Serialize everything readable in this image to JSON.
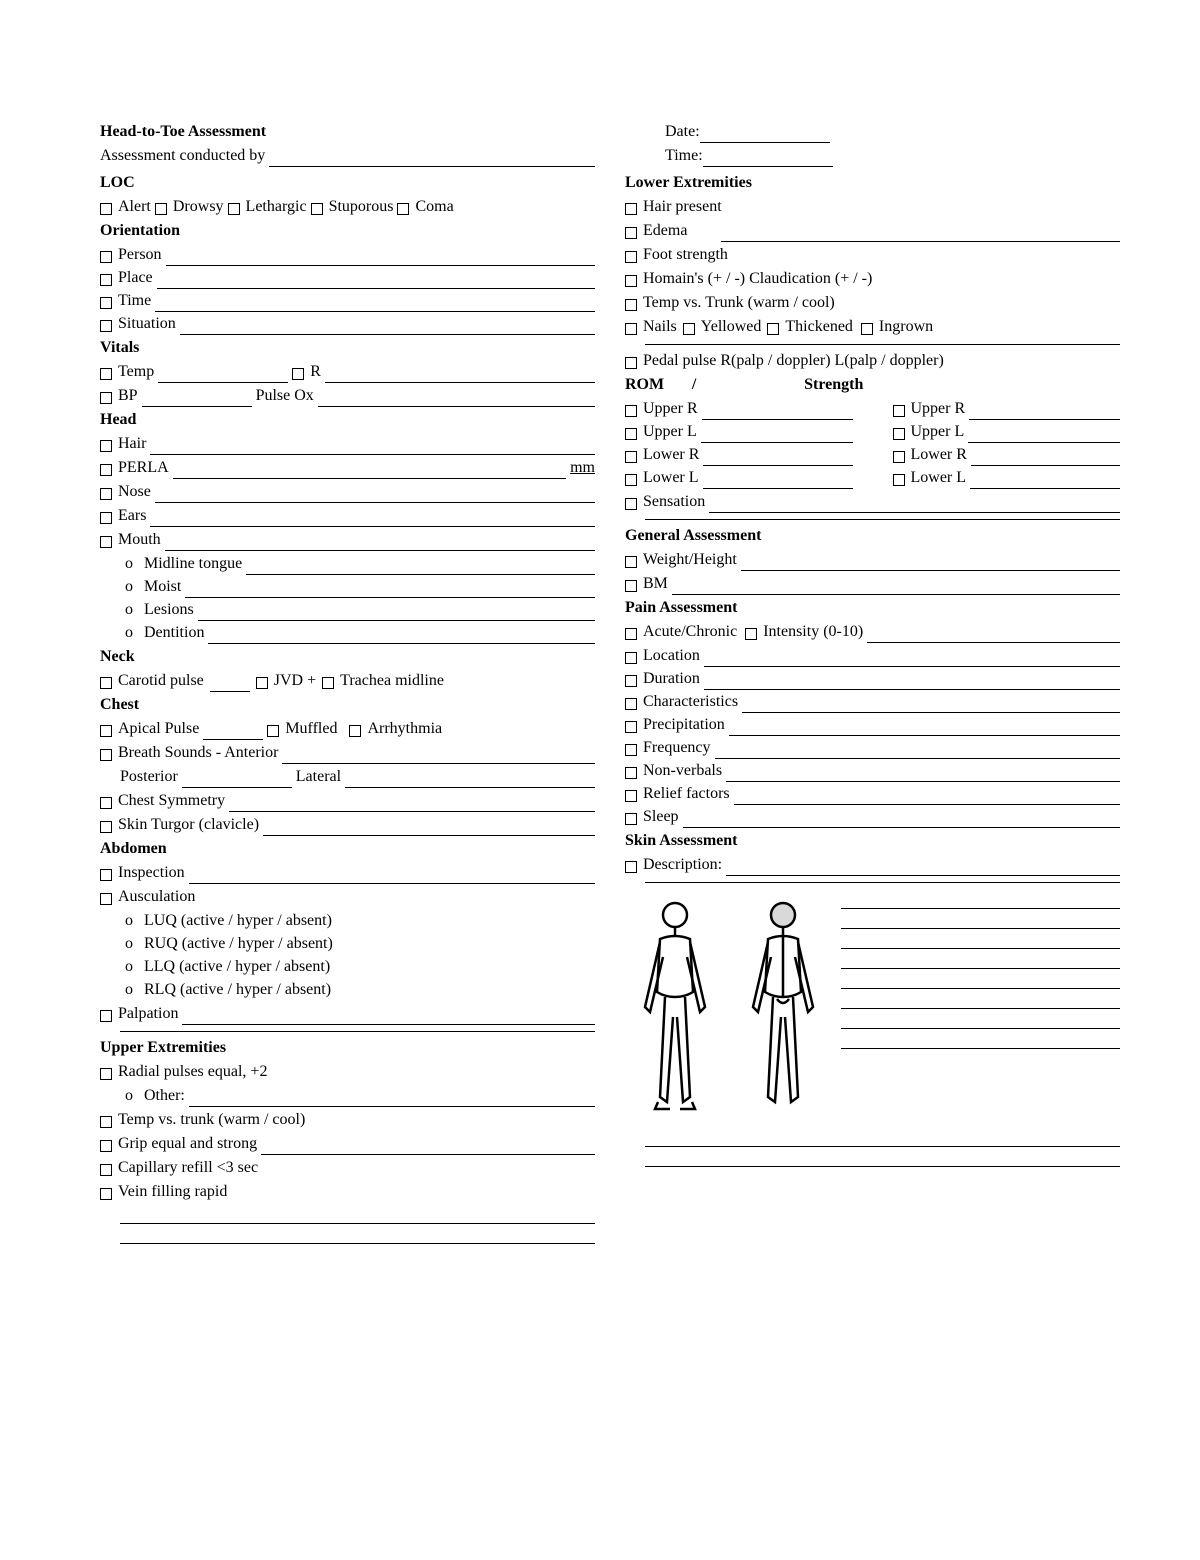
{
  "title": "Head-to-Toe Assessment",
  "conducted_by_label": "Assessment conducted by",
  "date_label": "Date:",
  "time_label": "Time:",
  "left": {
    "loc": {
      "heading": "LOC",
      "options": [
        "Alert",
        "Drowsy",
        "Lethargic",
        "Stuporous",
        "Coma"
      ]
    },
    "orientation": {
      "heading": "Orientation",
      "items": [
        "Person",
        "Place",
        "Time",
        "Situation"
      ]
    },
    "vitals": {
      "heading": "Vitals",
      "temp": "Temp",
      "r": "R",
      "bp": "BP",
      "pulseox": "Pulse Ox"
    },
    "head": {
      "heading": "Head",
      "items": [
        "Hair",
        "PERLA",
        "Nose",
        "Ears",
        "Mouth"
      ],
      "mm": "mm",
      "mouth_sub": [
        "Midline tongue",
        "Moist",
        "Lesions",
        "Dentition"
      ]
    },
    "neck": {
      "heading": "Neck",
      "carotid": "Carotid pulse",
      "jvd": "JVD +",
      "trachea": "Trachea midline"
    },
    "chest": {
      "heading": "Chest",
      "apical": "Apical Pulse",
      "muffled": "Muffled",
      "arr": "Arrhythmia",
      "breath": "Breath Sounds - Anterior",
      "posterior": "Posterior",
      "lateral": "Lateral",
      "symmetry": "Chest Symmetry",
      "turgor": "Skin Turgor (clavicle)"
    },
    "abdomen": {
      "heading": "Abdomen",
      "inspection": "Inspection",
      "ausc": "Ausculation",
      "quads": [
        "LUQ (active  /  hyper  /  absent)",
        "RUQ (active  /  hyper  /  absent)",
        "LLQ (active  /  hyper  /  absent)",
        "RLQ (active  /  hyper  /  absent)"
      ],
      "palpation": "Palpation"
    },
    "upper": {
      "heading": "Upper Extremities",
      "radial": "Radial pulses equal, +2",
      "other": "Other:",
      "temp": "Temp vs. trunk  (warm  /  cool)",
      "grip": "Grip equal and strong",
      "cap": "Capillary refill <3 sec",
      "vein": "Vein filling rapid"
    }
  },
  "right": {
    "lower": {
      "heading": "Lower Extremities",
      "items_plain": [
        "Hair present"
      ],
      "edema": "Edema",
      "foot": "Foot strength",
      "homain": "Homain's (+ / -) Claudication (+ / -)",
      "temp": "Temp vs. Trunk  (warm  /  cool)",
      "nails": "Nails",
      "yellowed": "Yellowed",
      "thick": "Thickened",
      "ingrown": "Ingrown",
      "pedal": "Pedal pulse  R(palp / doppler) L(palp / doppler)",
      "rom": "ROM",
      "slash": "/",
      "strength": "Strength",
      "rom_items": [
        "Upper R",
        "Upper L",
        "Lower R",
        "Lower L"
      ],
      "sensation": "Sensation"
    },
    "general": {
      "heading": "General Assessment",
      "wh": "Weight/Height",
      "bm": "BM"
    },
    "pain": {
      "heading": "Pain Assessment",
      "acute": "Acute/Chronic",
      "intensity": "Intensity (0-10)",
      "items": [
        "Location",
        "Duration",
        "Characteristics",
        "Precipitation",
        "Frequency",
        "Non-verbals",
        "Relief factors",
        "Sleep"
      ]
    },
    "skin": {
      "heading": "Skin Assessment",
      "desc": "Description:"
    }
  }
}
